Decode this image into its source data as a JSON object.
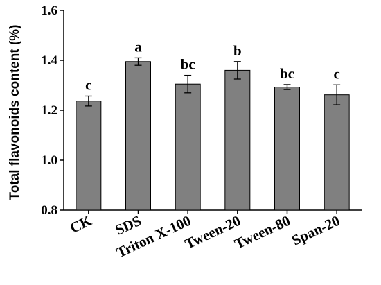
{
  "chart_data": {
    "type": "bar",
    "title": "",
    "xlabel": "",
    "ylabel": "Total flavonoids content (%)",
    "ylim": [
      0.8,
      1.6
    ],
    "yticks": [
      0.8,
      1.0,
      1.2,
      1.4,
      1.6
    ],
    "ytick_labels": [
      "0.8",
      "1.0",
      "1.2",
      "1.4",
      "1.6"
    ],
    "grid": false,
    "bar_color": "#808080",
    "categories": [
      "CK",
      "SDS",
      "Triton X-100",
      "Tween-20",
      "Tween-80",
      "Span-20"
    ],
    "values": [
      1.237,
      1.395,
      1.305,
      1.36,
      1.293,
      1.262
    ],
    "errors": [
      0.02,
      0.015,
      0.035,
      0.035,
      0.01,
      0.04
    ],
    "significance": [
      "c",
      "a",
      "bc",
      "b",
      "bc",
      "c"
    ]
  }
}
